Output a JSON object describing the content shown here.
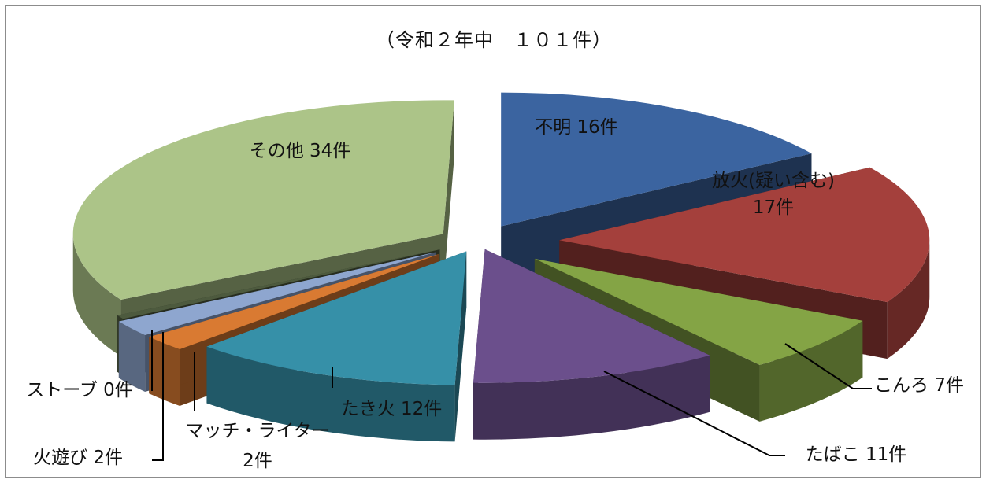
{
  "chart_data": {
    "type": "pie",
    "style": "3d-exploded",
    "title": "（令和２年中　１０１件）",
    "legend": "none",
    "slices": [
      {
        "label": "不明",
        "value": 16,
        "unit": "件",
        "color": "#3b64a0",
        "label_text": "不明 16件"
      },
      {
        "label": "放火(疑い含む)",
        "value": 17,
        "unit": "件",
        "color": "#a4403c",
        "label_text": [
          "放火(疑い含む)",
          "17件"
        ]
      },
      {
        "label": "こんろ",
        "value": 7,
        "unit": "件",
        "color": "#84a445",
        "label_text": "こんろ 7件"
      },
      {
        "label": "たばこ",
        "value": 11,
        "unit": "件",
        "color": "#6b4f8c",
        "label_text": "たばこ 11件"
      },
      {
        "label": "たき火",
        "value": 12,
        "unit": "件",
        "color": "#3690a8",
        "label_text": "たき火 12件"
      },
      {
        "label": "マッチ・ライター",
        "value": 2,
        "unit": "件",
        "color": "#d97a32",
        "label_text": [
          "マッチ・ライター",
          "2件"
        ]
      },
      {
        "label": "火遊び",
        "value": 2,
        "unit": "件",
        "color": "#8ea6cf",
        "label_text": "火遊び 2件"
      },
      {
        "label": "ストーブ",
        "value": 0,
        "unit": "件",
        "color": "#4d5a3e",
        "label_text": "ストーブ 0件"
      },
      {
        "label": "その他",
        "value": 34,
        "unit": "件",
        "color": "#acc488",
        "label_text": "その他 34件"
      }
    ]
  }
}
